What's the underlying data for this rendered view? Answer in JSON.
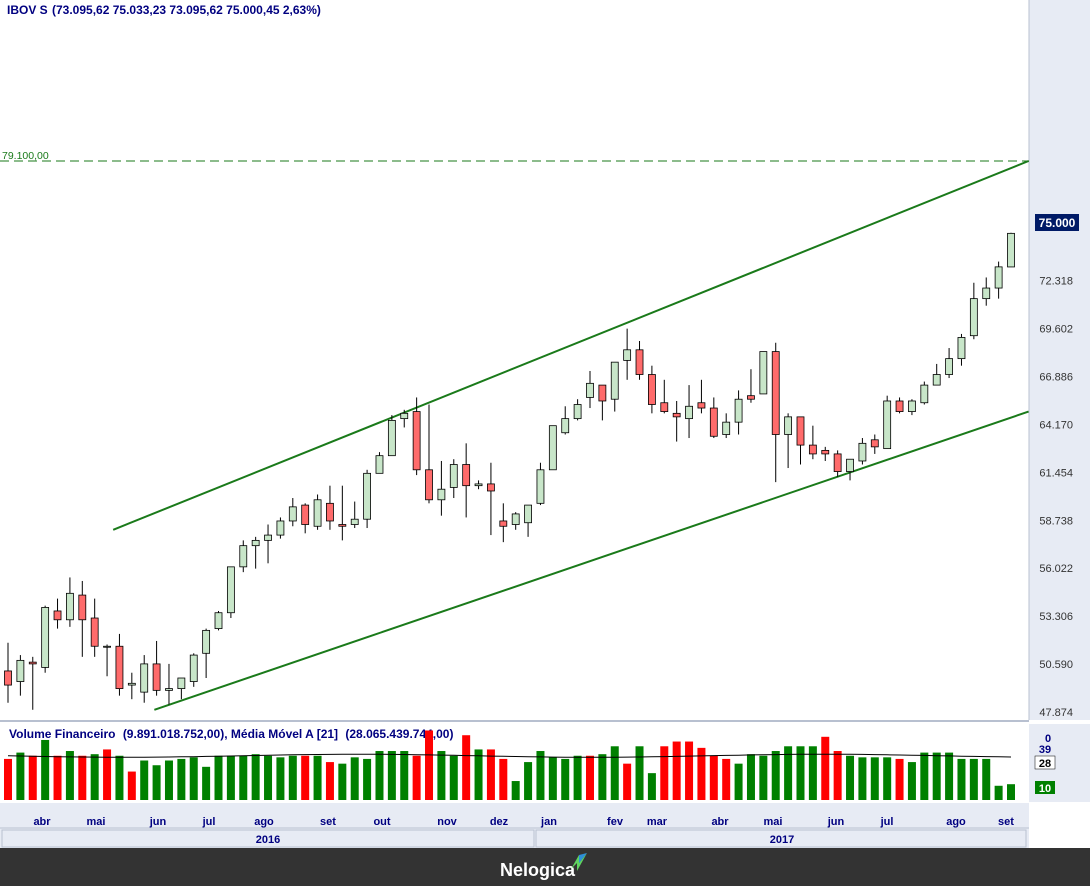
{
  "header": {
    "symbol": "IBOV S",
    "ohlc": "(73.095,62  75.033,23  73.095,62  75.000,45  2,63%)"
  },
  "price_axis": {
    "ticks": [
      "72.318",
      "69.602",
      "66.886",
      "64.170",
      "61.454",
      "58.738",
      "56.022",
      "53.306",
      "50.590",
      "47.874"
    ],
    "current_label": "75.000",
    "level_label": "79.100,00"
  },
  "volume_panel": {
    "title": "Volume Financeiro",
    "values_text": "(9.891.018.752,00)",
    "ma_title": "Média Móvel A [21]",
    "ma_values_text": "(28.065.439.744,00)",
    "axis_ticks": [
      "0",
      "39"
    ],
    "ma_label": "28",
    "last_label": "10"
  },
  "time_axis": {
    "months": [
      "abr",
      "mai",
      "jun",
      "jul",
      "ago",
      "set",
      "out",
      "nov",
      "dez",
      "jan",
      "fev",
      "mar",
      "abr",
      "mai",
      "jun",
      "jul",
      "ago",
      "set"
    ],
    "years": [
      "2016",
      "2017"
    ]
  },
  "brand": {
    "name": "Nelogica"
  },
  "colors": {
    "up": "#c8e6c9",
    "down": "#ff6b6b",
    "vol_up": "#008000",
    "vol_down": "#ff0000",
    "line": "#1a7a1a",
    "axis_bg": "#e7ebf4",
    "current_bg": "#001a66"
  },
  "chart_data": {
    "type": "candlestick",
    "price_range": [
      47874,
      79100
    ],
    "ohlc_weekly": [
      [
        50200,
        51800,
        48400,
        49400
      ],
      [
        49600,
        51100,
        48800,
        50800
      ],
      [
        50700,
        51000,
        48000,
        50600
      ],
      [
        50400,
        53900,
        50100,
        53800
      ],
      [
        53600,
        54300,
        52600,
        53100
      ],
      [
        53100,
        55500,
        52700,
        54600
      ],
      [
        54500,
        55300,
        51000,
        53100
      ],
      [
        53200,
        54300,
        51000,
        51600
      ],
      [
        51600,
        51700,
        49900,
        51600
      ],
      [
        51600,
        52300,
        48800,
        49200
      ],
      [
        49400,
        50100,
        48600,
        49500
      ],
      [
        49000,
        51100,
        48400,
        50600
      ],
      [
        50600,
        51900,
        48800,
        49100
      ],
      [
        49100,
        50600,
        48300,
        49200
      ],
      [
        49200,
        49800,
        48600,
        49800
      ],
      [
        49600,
        51200,
        49300,
        51100
      ],
      [
        51200,
        52600,
        49800,
        52500
      ],
      [
        52600,
        53600,
        52500,
        53500
      ],
      [
        53500,
        55900,
        53200,
        56100
      ],
      [
        56100,
        57600,
        55800,
        57300
      ],
      [
        57300,
        57800,
        56000,
        57600
      ],
      [
        57600,
        58500,
        56300,
        57900
      ],
      [
        57900,
        58900,
        57700,
        58700
      ],
      [
        58700,
        60000,
        58400,
        59500
      ],
      [
        59600,
        59700,
        58000,
        58500
      ],
      [
        58400,
        60200,
        58200,
        59900
      ],
      [
        59700,
        60700,
        58200,
        58700
      ],
      [
        58500,
        60700,
        57600,
        58400
      ],
      [
        58500,
        59800,
        58300,
        58800
      ],
      [
        58800,
        61600,
        58300,
        61400
      ],
      [
        61400,
        62600,
        61400,
        62400
      ],
      [
        62400,
        64700,
        62400,
        64400
      ],
      [
        64500,
        65000,
        64000,
        64800
      ],
      [
        64900,
        65700,
        61300,
        61600
      ],
      [
        61600,
        65300,
        59700,
        59900
      ],
      [
        59900,
        62100,
        59000,
        60500
      ],
      [
        60600,
        62200,
        60000,
        61900
      ],
      [
        61900,
        63100,
        58900,
        60700
      ],
      [
        60700,
        61000,
        60500,
        60800
      ],
      [
        60800,
        62000,
        57900,
        60400
      ],
      [
        58700,
        59700,
        57500,
        58400
      ],
      [
        58500,
        59200,
        58200,
        59100
      ],
      [
        58600,
        59100,
        57800,
        59600
      ],
      [
        59700,
        62000,
        59600,
        61600
      ],
      [
        61600,
        63800,
        62100,
        64100
      ],
      [
        63700,
        65200,
        63600,
        64500
      ],
      [
        64500,
        65600,
        64400,
        65300
      ],
      [
        65700,
        67200,
        65100,
        66500
      ],
      [
        66400,
        66400,
        64400,
        65500
      ],
      [
        65600,
        67300,
        64900,
        67700
      ],
      [
        67800,
        69600,
        66700,
        68400
      ],
      [
        68400,
        68900,
        66700,
        67000
      ],
      [
        67000,
        67500,
        64800,
        65300
      ],
      [
        65400,
        66700,
        64800,
        64900
      ],
      [
        64800,
        65500,
        63200,
        64600
      ],
      [
        64500,
        66400,
        63400,
        65200
      ],
      [
        65400,
        66700,
        64800,
        65100
      ],
      [
        65100,
        65700,
        63400,
        63500
      ],
      [
        63600,
        64800,
        63400,
        64300
      ],
      [
        64300,
        66100,
        63600,
        65600
      ],
      [
        65800,
        67300,
        65400,
        65600
      ],
      [
        65900,
        68300,
        66200,
        68300
      ],
      [
        68300,
        68800,
        60900,
        63600
      ],
      [
        63600,
        64800,
        61700,
        64600
      ],
      [
        64600,
        64600,
        61900,
        63000
      ],
      [
        63000,
        64100,
        62200,
        62500
      ],
      [
        62700,
        62900,
        62100,
        62500
      ],
      [
        62500,
        62700,
        61200,
        61500
      ],
      [
        61500,
        62000,
        61000,
        62200
      ],
      [
        62100,
        63400,
        61900,
        63100
      ],
      [
        63300,
        63600,
        62500,
        62900
      ],
      [
        62800,
        65800,
        62800,
        65500
      ],
      [
        65500,
        65700,
        64800,
        64900
      ],
      [
        64900,
        65600,
        64700,
        65500
      ],
      [
        65400,
        66600,
        65300,
        66400
      ],
      [
        66400,
        67600,
        66400,
        67000
      ],
      [
        67000,
        68500,
        66800,
        67900
      ],
      [
        67900,
        69300,
        67500,
        69100
      ],
      [
        69200,
        72200,
        69000,
        71300
      ],
      [
        71300,
        72500,
        70900,
        71900
      ],
      [
        71900,
        73400,
        71300,
        73100
      ],
      [
        73096,
        75033,
        73096,
        75000
      ]
    ],
    "channel_upper": [
      [
        0.11,
        58200
      ],
      [
        0.985,
        79100
      ]
    ],
    "channel_lower": [
      [
        0.15,
        48000
      ],
      [
        0.985,
        64900
      ]
    ],
    "resistance_level": 79100,
    "volume_panel_range": [
      0,
      39
    ],
    "volume_ma_21": 28,
    "volume": [
      [
        26,
        0
      ],
      [
        30,
        1
      ],
      [
        28,
        0
      ],
      [
        38,
        1
      ],
      [
        28,
        0
      ],
      [
        31,
        1
      ],
      [
        28,
        0
      ],
      [
        29,
        1
      ],
      [
        32,
        0
      ],
      [
        28,
        1
      ],
      [
        18,
        0
      ],
      [
        25,
        1
      ],
      [
        22,
        1
      ],
      [
        25,
        1
      ],
      [
        26,
        1
      ],
      [
        27,
        1
      ],
      [
        21,
        1
      ],
      [
        28,
        1
      ],
      [
        28,
        1
      ],
      [
        28,
        1
      ],
      [
        29,
        1
      ],
      [
        28,
        1
      ],
      [
        27,
        1
      ],
      [
        28,
        1
      ],
      [
        28,
        0
      ],
      [
        28,
        1
      ],
      [
        24,
        0
      ],
      [
        23,
        1
      ],
      [
        27,
        1
      ],
      [
        26,
        1
      ],
      [
        31,
        1
      ],
      [
        31,
        1
      ],
      [
        31,
        1
      ],
      [
        28,
        0
      ],
      [
        44,
        0
      ],
      [
        31,
        1
      ],
      [
        28,
        1
      ],
      [
        41,
        0
      ],
      [
        32,
        1
      ],
      [
        32,
        0
      ],
      [
        26,
        0
      ],
      [
        12,
        1
      ],
      [
        24,
        1
      ],
      [
        31,
        1
      ],
      [
        27,
        1
      ],
      [
        26,
        1
      ],
      [
        28,
        1
      ],
      [
        28,
        0
      ],
      [
        29,
        1
      ],
      [
        34,
        1
      ],
      [
        23,
        0
      ],
      [
        34,
        1
      ],
      [
        17,
        1
      ],
      [
        34,
        0
      ],
      [
        37,
        0
      ],
      [
        37,
        0
      ],
      [
        33,
        0
      ],
      [
        28,
        0
      ],
      [
        26,
        0
      ],
      [
        23,
        1
      ],
      [
        29,
        1
      ],
      [
        28,
        1
      ],
      [
        31,
        1
      ],
      [
        34,
        1
      ],
      [
        34,
        1
      ],
      [
        34,
        1
      ],
      [
        40,
        0
      ],
      [
        31,
        0
      ],
      [
        28,
        1
      ],
      [
        27,
        1
      ],
      [
        27,
        1
      ],
      [
        27,
        1
      ],
      [
        26,
        0
      ],
      [
        24,
        1
      ],
      [
        30,
        1
      ],
      [
        30,
        1
      ],
      [
        30,
        1
      ],
      [
        26,
        1
      ],
      [
        26,
        1
      ],
      [
        26,
        1
      ],
      [
        9,
        1
      ],
      [
        10,
        1
      ]
    ]
  }
}
